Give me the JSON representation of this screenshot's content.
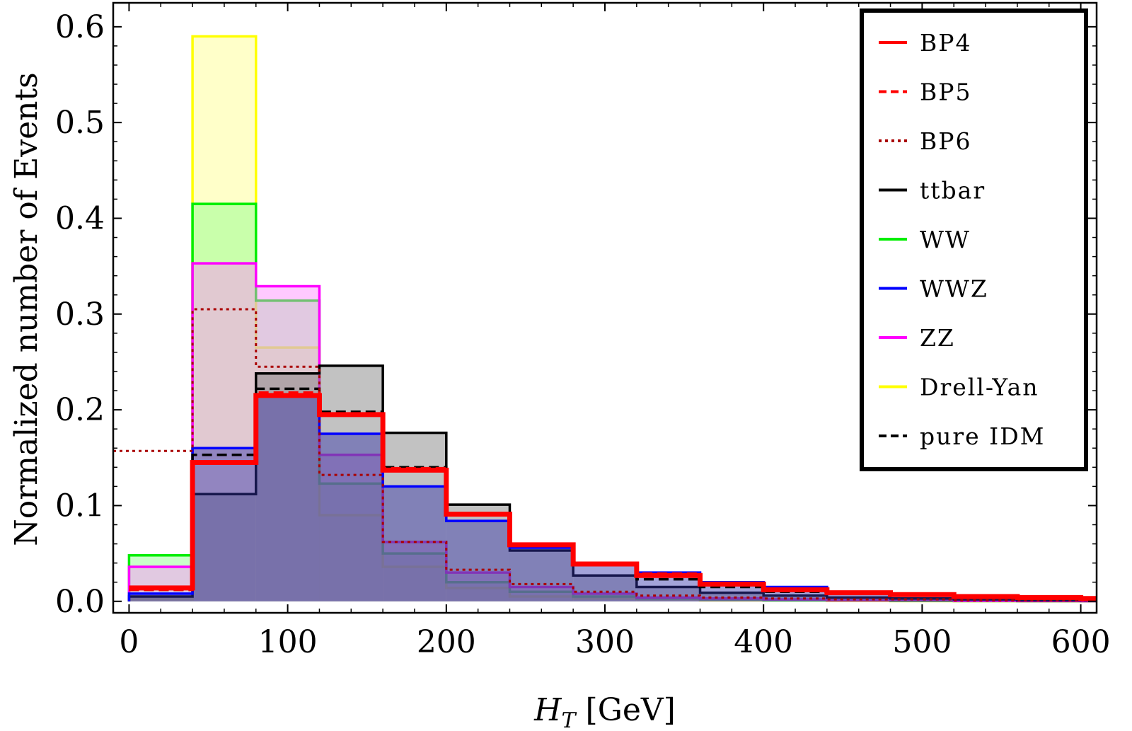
{
  "chart_data": {
    "type": "histogram",
    "xlabel_main": "H",
    "xlabel_sub": "T",
    "xlabel_unit": " [GeV]",
    "ylabel": "Normalized number of Events",
    "xlim": [
      -10,
      610
    ],
    "ylim": [
      -0.012,
      0.625
    ],
    "xticks": [
      0,
      100,
      200,
      300,
      400,
      500,
      600
    ],
    "xtick_labels": [
      "0",
      "100",
      "200",
      "300",
      "400",
      "500",
      "600"
    ],
    "yticks": [
      0.0,
      0.1,
      0.2,
      0.3,
      0.4,
      0.5,
      0.6
    ],
    "ytick_labels": [
      "0.0",
      "0.1",
      "0.2",
      "0.3",
      "0.4",
      "0.5",
      "0.6"
    ],
    "bin_edges": [
      0,
      40,
      80,
      120,
      160,
      200,
      240,
      280,
      320,
      360,
      400,
      440,
      480,
      520,
      560,
      600,
      640
    ],
    "legend_position": "top-right",
    "series": [
      {
        "name": "Drell-Yan",
        "color": "#ffff00",
        "fill": "#ffff88",
        "dash": "solid",
        "filled": true,
        "values": [
          0.002,
          0.59,
          0.265,
          0.09,
          0.036,
          0.014,
          0.005,
          0.003,
          0.002,
          0.001,
          0.001,
          0.0005,
          0.0003,
          0.0002,
          0.0001,
          0.0001
        ]
      },
      {
        "name": "WW",
        "color": "#00ee00",
        "fill": "#88ff88",
        "dash": "solid",
        "filled": true,
        "values": [
          0.048,
          0.415,
          0.314,
          0.123,
          0.05,
          0.02,
          0.01,
          0.005,
          0.003,
          0.002,
          0.001,
          0.001,
          0.0005,
          0.0003,
          0.0002,
          0.0001
        ]
      },
      {
        "name": "ZZ",
        "color": "#ff00ff",
        "fill": "#ff88ff",
        "dash": "solid",
        "filled": true,
        "values": [
          0.036,
          0.353,
          0.329,
          0.153,
          0.062,
          0.03,
          0.015,
          0.008,
          0.004,
          0.003,
          0.002,
          0.001,
          0.001,
          0.0005,
          0.0003,
          0.0002
        ]
      },
      {
        "name": "ttbar",
        "color": "#000000",
        "fill": "#777777",
        "dash": "solid",
        "filled": true,
        "values": [
          0.005,
          0.112,
          0.238,
          0.246,
          0.176,
          0.101,
          0.053,
          0.027,
          0.015,
          0.009,
          0.006,
          0.004,
          0.003,
          0.002,
          0.001,
          0.001
        ]
      },
      {
        "name": "WWZ",
        "color": "#0000ff",
        "fill": "#3333aa",
        "dash": "solid",
        "filled": true,
        "values": [
          0.008,
          0.16,
          0.215,
          0.175,
          0.12,
          0.084,
          0.056,
          0.04,
          0.03,
          0.02,
          0.015,
          0.01,
          0.008,
          0.006,
          0.005,
          0.004
        ]
      },
      {
        "name": "pure IDM",
        "color": "#000000",
        "fill": "none",
        "dash": "dashed",
        "filled": false,
        "values": [
          0.012,
          0.153,
          0.222,
          0.198,
          0.14,
          0.09,
          0.058,
          0.038,
          0.023,
          0.015,
          0.01,
          0.008,
          0.006,
          0.005,
          0.004,
          0.003
        ]
      },
      {
        "name": "BP6",
        "color": "#aa0000",
        "fill": "none",
        "dash": "dotted",
        "filled": false,
        "x_start": -10,
        "values": [
          0.157,
          0.305,
          0.245,
          0.132,
          0.062,
          0.033,
          0.018,
          0.01,
          0.006,
          0.004,
          0.003,
          0.002,
          0.002,
          0.001,
          0.001,
          0.001
        ]
      },
      {
        "name": "BP5",
        "color": "#ff0000",
        "fill": "none",
        "dash": "dashed",
        "filled": false,
        "values": [
          0.012,
          0.144,
          0.218,
          0.195,
          0.139,
          0.091,
          0.059,
          0.04,
          0.029,
          0.018,
          0.012,
          0.009,
          0.007,
          0.005,
          0.004,
          0.003
        ]
      },
      {
        "name": "BP4",
        "color": "#ff0000",
        "fill": "none",
        "dash": "solid",
        "filled": false,
        "thick": true,
        "values": [
          0.014,
          0.145,
          0.215,
          0.195,
          0.137,
          0.091,
          0.059,
          0.039,
          0.027,
          0.018,
          0.012,
          0.009,
          0.007,
          0.005,
          0.004,
          0.003
        ]
      }
    ],
    "legend": [
      {
        "label": "BP4",
        "color": "#ff0000",
        "dash": "solid"
      },
      {
        "label": "BP5",
        "color": "#ff0000",
        "dash": "dashed"
      },
      {
        "label": "BP6",
        "color": "#aa0000",
        "dash": "dotted"
      },
      {
        "label": "ttbar",
        "color": "#000000",
        "dash": "solid"
      },
      {
        "label": "WW",
        "color": "#00ee00",
        "dash": "solid"
      },
      {
        "label": "WWZ",
        "color": "#0000ff",
        "dash": "solid"
      },
      {
        "label": "ZZ",
        "color": "#ff00ff",
        "dash": "solid"
      },
      {
        "label": "Drell-Yan",
        "color": "#ffff00",
        "dash": "solid"
      },
      {
        "label": "pure IDM",
        "color": "#000000",
        "dash": "dashed"
      }
    ]
  }
}
